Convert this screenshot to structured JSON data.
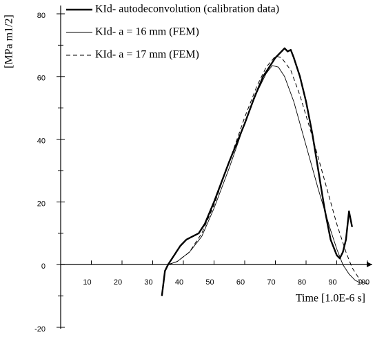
{
  "chart_data": {
    "type": "line",
    "xlabel": "Time [1.0E-6 s]",
    "ylabel": "[MPa m1/2]",
    "xlim": [
      0,
      100
    ],
    "ylim": [
      -20,
      80
    ],
    "xticks": [
      10,
      20,
      30,
      40,
      50,
      60,
      70,
      80,
      90,
      100
    ],
    "yticks": [
      -20,
      0,
      20,
      40,
      60,
      80
    ],
    "yminor_ticks": [
      -10,
      10,
      30,
      50,
      70
    ],
    "series": [
      {
        "name": "KId- autodeconvolution (calibration data)",
        "color": "#000000",
        "style": "thick",
        "x": [
          33,
          34,
          35,
          37,
          39,
          41,
          43,
          45,
          47,
          50,
          55,
          60,
          63,
          66,
          68,
          70,
          72,
          73,
          74,
          75,
          76,
          78,
          80,
          82,
          84,
          86,
          88,
          90,
          91,
          92,
          93,
          94,
          95
        ],
        "values": [
          -10,
          -2,
          0,
          3,
          6,
          8,
          9,
          10,
          13,
          20,
          33,
          45,
          53,
          60,
          63,
          66,
          68,
          69,
          68,
          68.5,
          66,
          60,
          52,
          42,
          30,
          18,
          8,
          3,
          2,
          4,
          8,
          17,
          12
        ]
      },
      {
        "name": "KId- a = 16 mm (FEM)",
        "color": "#000000",
        "style": "thin",
        "x": [
          35,
          38,
          42,
          46,
          50,
          55,
          60,
          64,
          67,
          69,
          71,
          73,
          76,
          80,
          84,
          88,
          90,
          92,
          94,
          96,
          98,
          99
        ],
        "values": [
          0,
          1,
          4,
          9,
          18,
          31,
          45,
          55,
          61,
          63.5,
          63,
          60,
          52,
          38,
          24,
          11,
          5,
          0,
          -3,
          -5,
          -6,
          -5.5
        ]
      },
      {
        "name": "KId- a = 17 mm (FEM)",
        "color": "#000000",
        "style": "dashed",
        "x": [
          35,
          38,
          42,
          46,
          50,
          55,
          60,
          64,
          67,
          70,
          72,
          75,
          78,
          82,
          86,
          90,
          93,
          95,
          97,
          99,
          100
        ],
        "values": [
          0,
          1,
          4,
          10,
          19,
          33,
          47,
          57,
          63,
          66.5,
          66,
          62,
          54,
          41,
          27,
          13,
          4,
          -1,
          -4,
          -6,
          -6
        ]
      }
    ]
  }
}
